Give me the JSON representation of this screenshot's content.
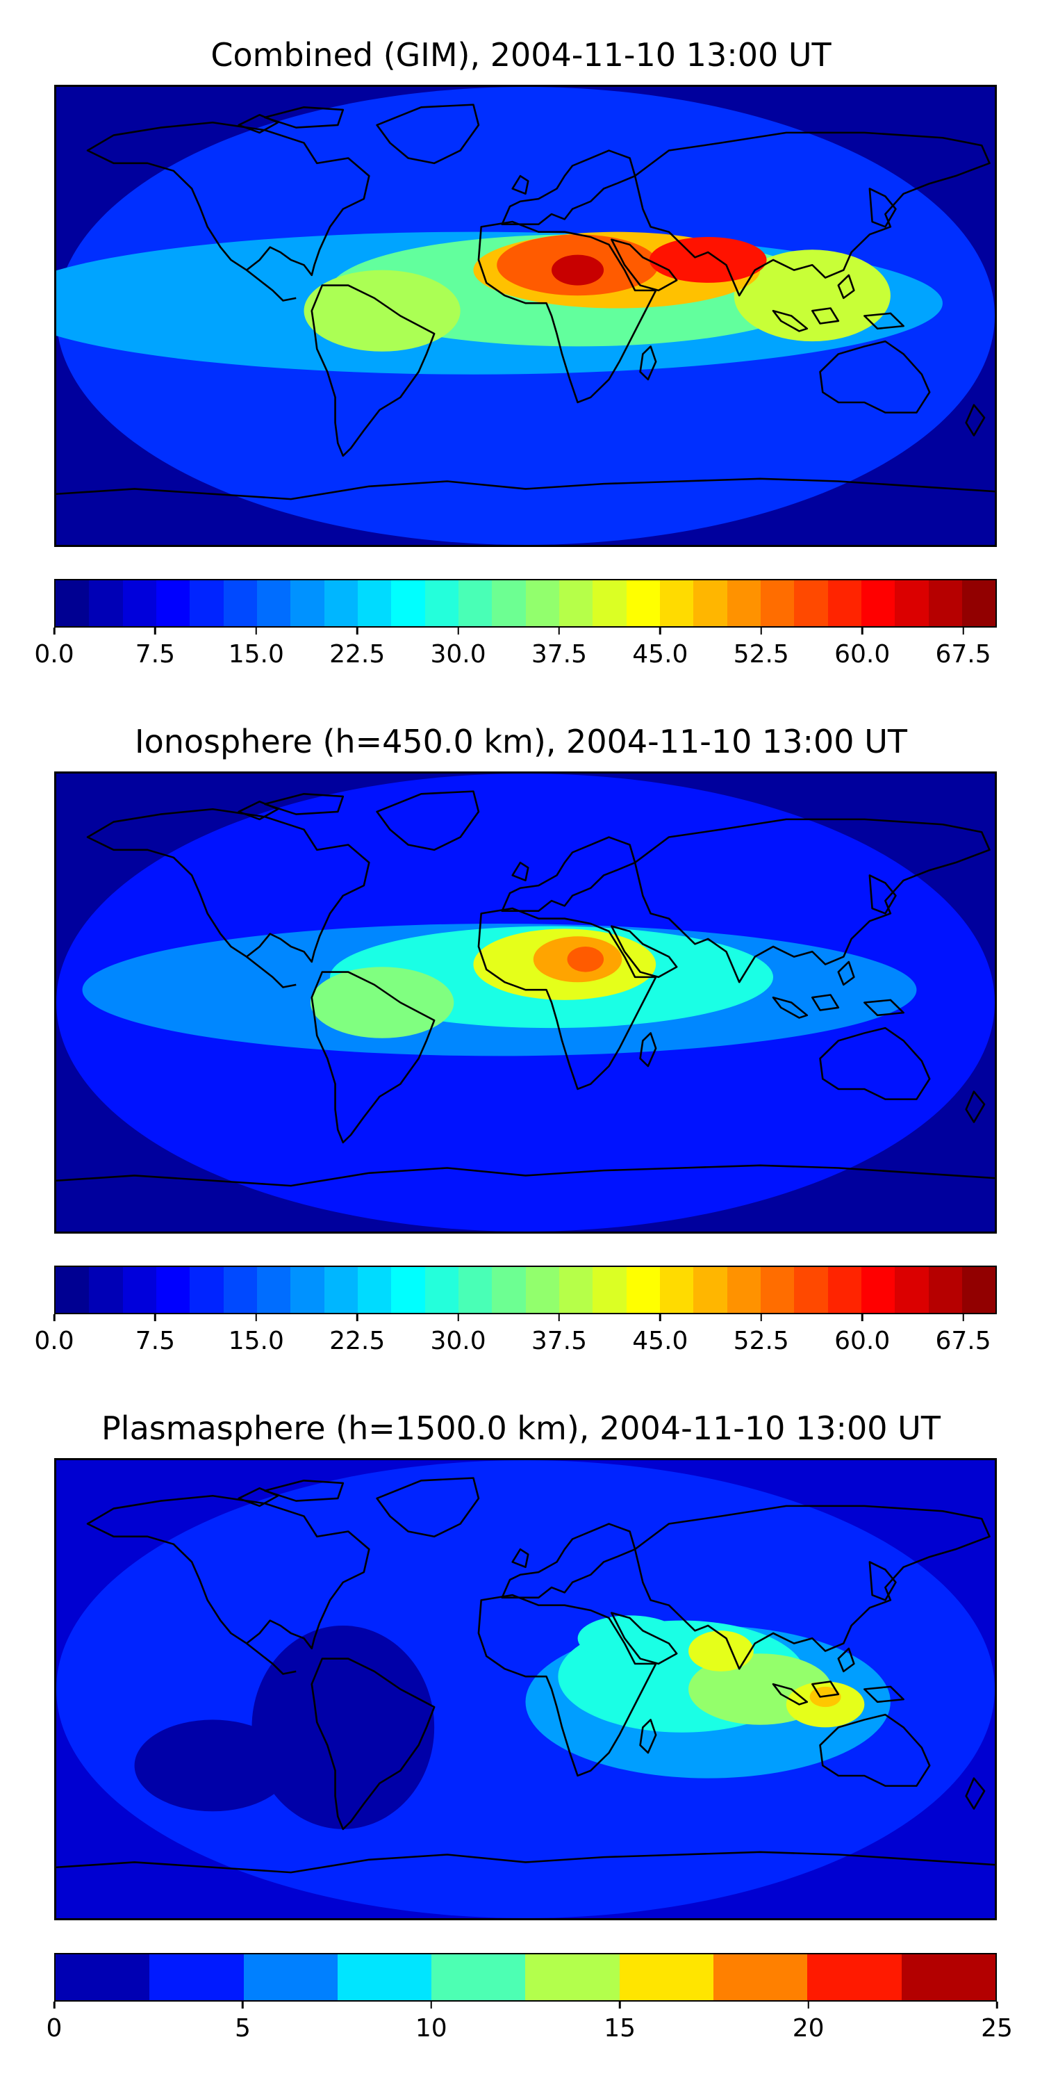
{
  "chart_data": [
    {
      "type": "heatmap",
      "title": "Combined (GIM), 2004-11-10 13:00 UT",
      "colorbar": {
        "min": 0,
        "max": 70,
        "levels": 28,
        "tick_labels": [
          "0.0",
          "7.5",
          "15.0",
          "22.5",
          "30.0",
          "37.5",
          "45.0",
          "52.5",
          "60.0",
          "67.5"
        ],
        "tick_values": [
          0,
          7.5,
          15,
          22.5,
          30,
          37.5,
          45,
          52.5,
          60,
          67.5
        ]
      },
      "colormap": "jet",
      "features": [
        {
          "region": "North Africa / Sahara",
          "value": 65
        },
        {
          "region": "Arabian Peninsula / India",
          "value": 60
        },
        {
          "region": "West Africa / Equatorial Atlantic",
          "value": 55
        },
        {
          "region": "South America (northern)",
          "value": 38
        },
        {
          "region": "Southeast Asia / Philippines",
          "value": 40
        },
        {
          "region": "Pacific low latitudes",
          "value": 20
        },
        {
          "region": "Polar regions",
          "value": 4
        }
      ]
    },
    {
      "type": "heatmap",
      "title": "Ionosphere  (h=450.0 km), 2004-11-10 13:00 UT",
      "colorbar": {
        "min": 0,
        "max": 70,
        "levels": 28,
        "tick_labels": [
          "0.0",
          "7.5",
          "15.0",
          "22.5",
          "30.0",
          "37.5",
          "45.0",
          "52.5",
          "60.0",
          "67.5"
        ],
        "tick_values": [
          0,
          7.5,
          15,
          22.5,
          30,
          37.5,
          45,
          52.5,
          60,
          67.5
        ]
      },
      "colormap": "jet",
      "features": [
        {
          "region": "North Africa / Sahara",
          "value": 55
        },
        {
          "region": "West Africa",
          "value": 48
        },
        {
          "region": "South America (northern)",
          "value": 35
        },
        {
          "region": "Arabian Peninsula / India",
          "value": 30
        },
        {
          "region": "Southeast Asia",
          "value": 25
        },
        {
          "region": "Polar regions",
          "value": 3
        }
      ]
    },
    {
      "type": "heatmap",
      "title": "Plasmasphere (h=1500.0 km), 2004-11-10 13:00 UT",
      "colorbar": {
        "min": 0,
        "max": 25,
        "levels": 10,
        "tick_labels": [
          "0",
          "5",
          "10",
          "15",
          "20",
          "25"
        ],
        "tick_values": [
          0,
          5,
          10,
          15,
          20,
          25
        ]
      },
      "colormap": "jet",
      "features": [
        {
          "region": "Indonesia / Maritime Continent",
          "value": 16
        },
        {
          "region": "Arabian Sea / Persian Gulf",
          "value": 15
        },
        {
          "region": "Indian Ocean",
          "value": 12
        },
        {
          "region": "Equatorial Africa",
          "value": 9
        },
        {
          "region": "Atlantic / Americas",
          "value": 4
        },
        {
          "region": "Southeast Pacific",
          "value": 1
        }
      ]
    }
  ]
}
